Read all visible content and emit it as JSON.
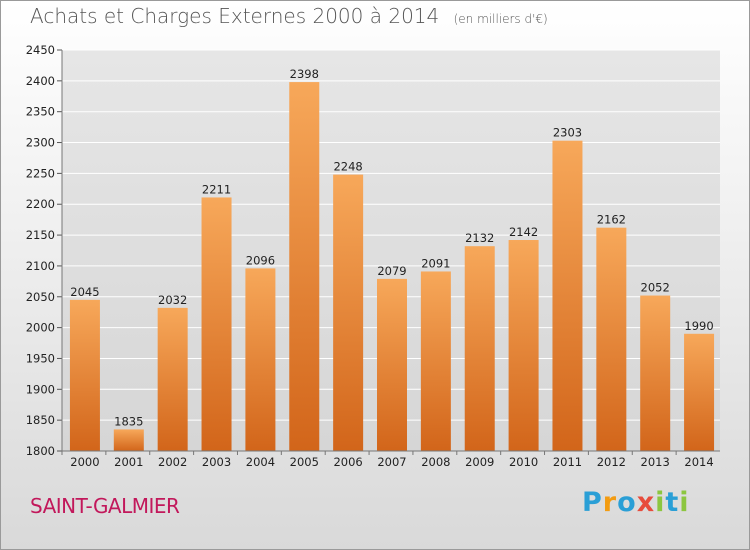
{
  "title": "Achats et Charges Externes 2000 à 2014",
  "subtitle": "(en milliers d'€)",
  "location": "SAINT-GALMIER",
  "logo": {
    "text": "Proxiti",
    "letters": [
      {
        "ch": "P",
        "color": "#2a9fd6"
      },
      {
        "ch": "r",
        "color": "#f39c12"
      },
      {
        "ch": "o",
        "color": "#2a9fd6"
      },
      {
        "ch": "x",
        "color": "#e74c3c"
      },
      {
        "ch": "i",
        "color": "#8cc63f"
      },
      {
        "ch": "t",
        "color": "#2a9fd6"
      },
      {
        "ch": "i",
        "color": "#8cc63f"
      }
    ]
  },
  "colors": {
    "bar_top": "#f7a85a",
    "bar_bottom": "#d2651a",
    "grid": "#ffffff",
    "title": "#555555",
    "location": "#c2185b"
  },
  "chart_data": {
    "type": "bar",
    "title": "Achats et Charges Externes 2000 à 2014",
    "subtitle": "(en milliers d'€)",
    "categories": [
      "2000",
      "2001",
      "2002",
      "2003",
      "2004",
      "2005",
      "2006",
      "2007",
      "2008",
      "2009",
      "2010",
      "2011",
      "2012",
      "2013",
      "2014"
    ],
    "values": [
      2045,
      1835,
      2032,
      2211,
      2096,
      2398,
      2248,
      2079,
      2091,
      2132,
      2142,
      2303,
      2162,
      2052,
      1990
    ],
    "ylim": [
      1800,
      2450
    ],
    "yticks": [
      1800,
      1850,
      1900,
      1950,
      2000,
      2050,
      2100,
      2150,
      2200,
      2250,
      2300,
      2350,
      2400,
      2450
    ],
    "grid": true,
    "legend": "none"
  }
}
